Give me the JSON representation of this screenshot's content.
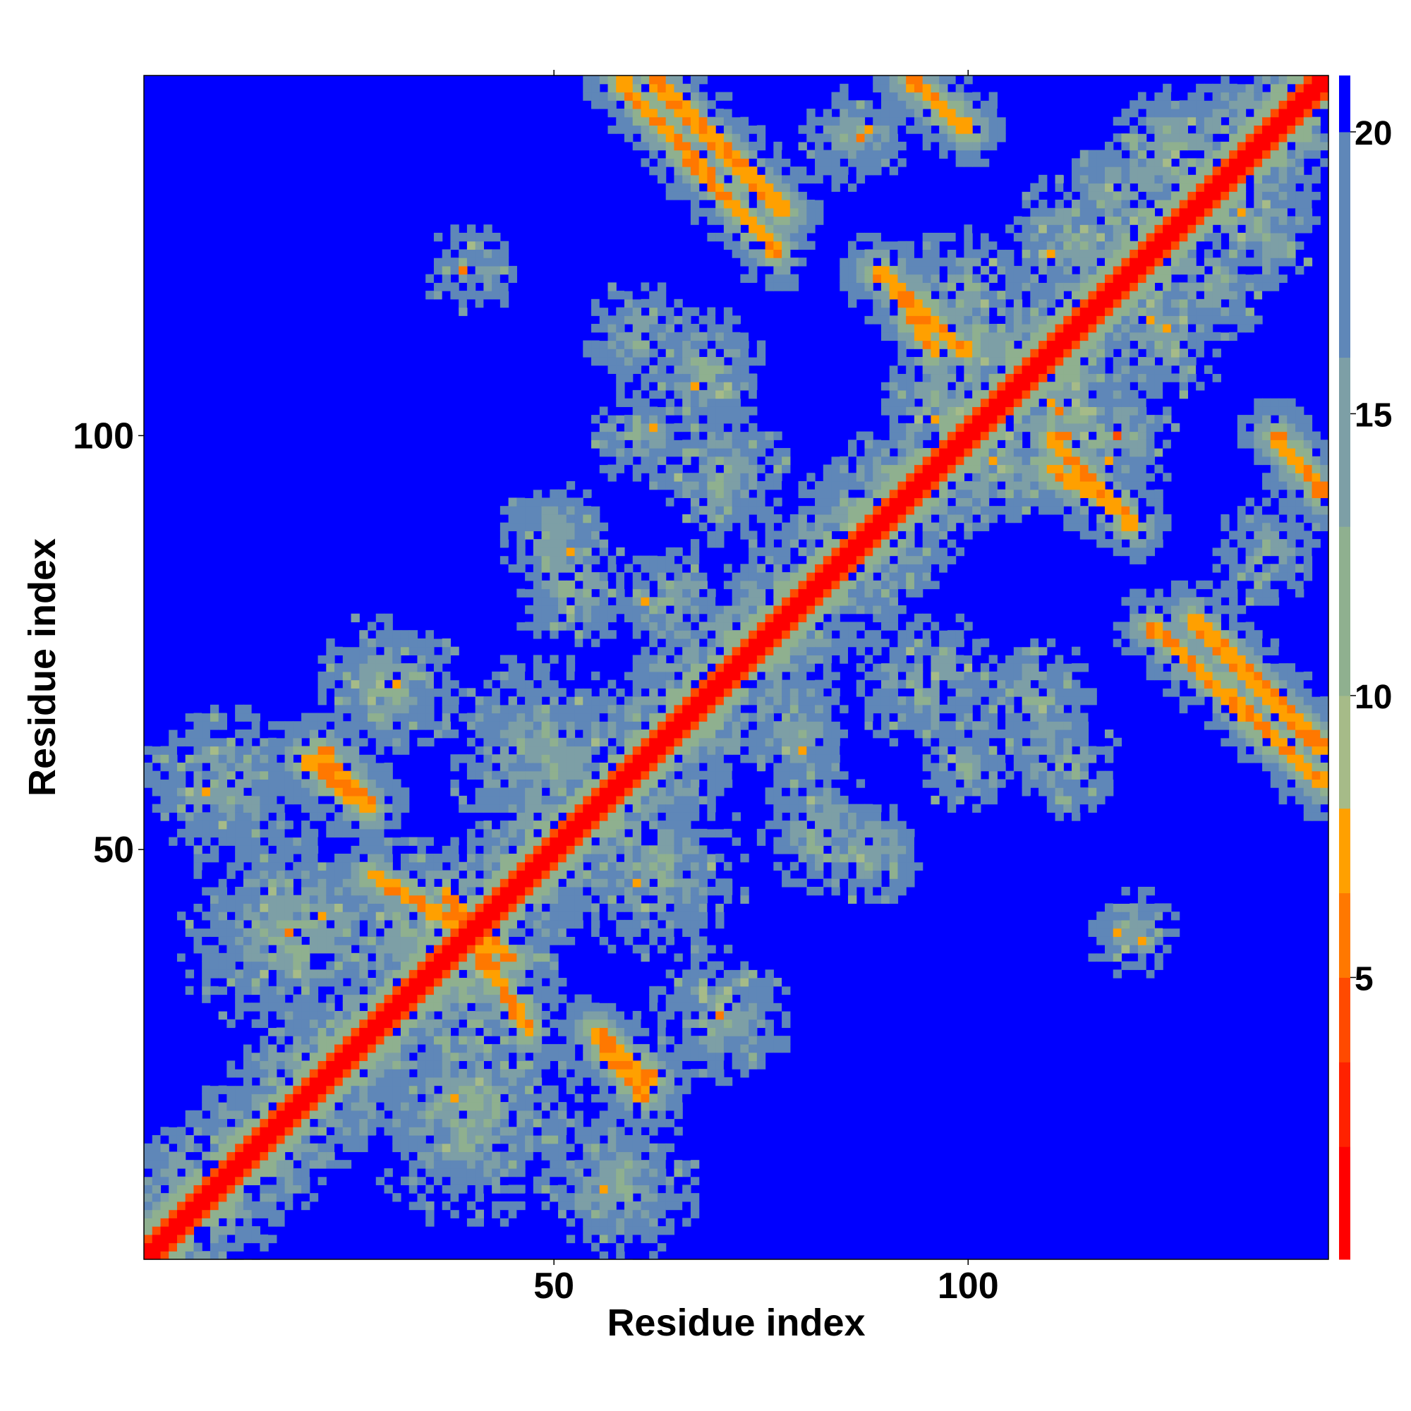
{
  "chart_data": {
    "type": "heatmap",
    "title": "",
    "xlabel": "Residue index",
    "ylabel": "Residue index",
    "xlim": [
      1,
      143
    ],
    "ylim": [
      1,
      143
    ],
    "x_ticks": [
      50,
      100
    ],
    "y_ticks": [
      50,
      100
    ],
    "n_residues": 143,
    "colorbar": {
      "ticks": [
        5,
        10,
        15,
        20
      ],
      "range": [
        0,
        21
      ],
      "palette": [
        "#ff0000",
        "#ff2200",
        "#ff4a00",
        "#ff7800",
        "#ffa000",
        "#a6bb88",
        "#8fb08f",
        "#7d9fa6",
        "#5f87b8",
        "#0000ff"
      ],
      "boundaries": [
        0,
        2,
        3.5,
        5,
        6.5,
        8,
        10,
        13,
        16,
        20,
        21
      ]
    },
    "features": {
      "diagonal_band": "contact distance < 2 along i = j",
      "antiparallel_strands": [
        {
          "from": [
            62,
            143
          ],
          "to": [
            78,
            127
          ]
        },
        {
          "from": [
            89,
            120
          ],
          "to": [
            100,
            110
          ]
        },
        {
          "from": [
            110,
            96
          ],
          "to": [
            120,
            90
          ]
        },
        {
          "from": [
            122,
            77
          ],
          "to": [
            143,
            58
          ]
        },
        {
          "from": [
            20,
            61
          ],
          "to": [
            26,
            56
          ]
        },
        {
          "from": [
            28,
            47
          ],
          "to": [
            45,
            37
          ]
        },
        {
          "from": [
            55,
            28
          ],
          "to": [
            62,
            22
          ]
        },
        {
          "from": [
            93,
            143
          ],
          "to": [
            100,
            137
          ]
        }
      ],
      "far_region_value": 21
    }
  }
}
